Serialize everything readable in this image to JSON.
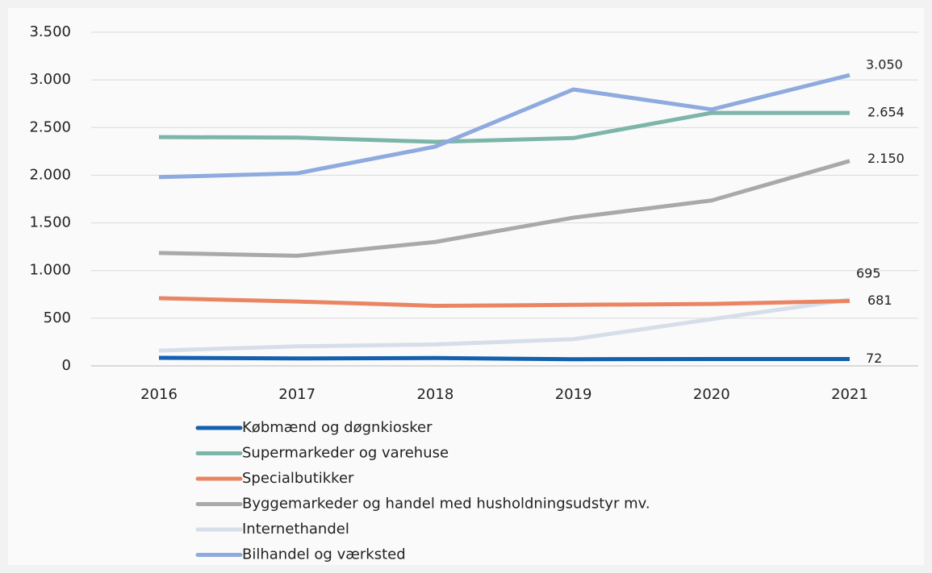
{
  "chart_data": {
    "type": "line",
    "categories": [
      "2016",
      "2017",
      "2018",
      "2019",
      "2020",
      "2021"
    ],
    "ylim": [
      0,
      3500
    ],
    "yticks": [
      0,
      500,
      {
        "value": 1000,
        "label": "1.000"
      },
      {
        "value": 1500,
        "label": "1.500"
      },
      {
        "value": 2000,
        "label": "2.000"
      },
      {
        "value": 2500,
        "label": "2.500"
      },
      {
        "value": 3000,
        "label": "3.000"
      },
      {
        "value": 3500,
        "label": "3.500"
      }
    ],
    "grid": true,
    "legend": "bottom",
    "series": [
      {
        "name": "Købmænd og døgnkiosker",
        "color": "#135fb0",
        "values": [
          85,
          78,
          82,
          70,
          72,
          72
        ],
        "value_labels": [
          null,
          null,
          null,
          null,
          null,
          "72"
        ]
      },
      {
        "name": "Supermarkeder og varehuse",
        "color": "#7db5a9",
        "values": [
          2400,
          2395,
          2350,
          2390,
          2654,
          2654
        ],
        "value_labels": [
          null,
          null,
          null,
          null,
          null,
          "2.654"
        ]
      },
      {
        "name": "Specialbutikker",
        "color": "#ea8563",
        "values": [
          710,
          675,
          630,
          640,
          650,
          681
        ],
        "value_labels": [
          null,
          null,
          null,
          null,
          null,
          "681"
        ]
      },
      {
        "name": "Byggemarkeder og handel med husholdningsudstyr mv.",
        "color": "#a9a9a9",
        "values": [
          1185,
          1155,
          1300,
          1555,
          1735,
          2150
        ],
        "value_labels": [
          null,
          null,
          null,
          null,
          null,
          "2.150"
        ]
      },
      {
        "name": "Internethandel",
        "color": "#d6dee9",
        "values": [
          160,
          205,
          225,
          280,
          490,
          695
        ],
        "value_labels": [
          null,
          null,
          null,
          null,
          null,
          "695"
        ]
      },
      {
        "name": "Bilhandel og værksted",
        "color": "#8eaade",
        "values": [
          1980,
          2020,
          2300,
          2900,
          2690,
          3050
        ],
        "value_labels": [
          null,
          null,
          null,
          null,
          null,
          "3.050"
        ]
      }
    ]
  }
}
